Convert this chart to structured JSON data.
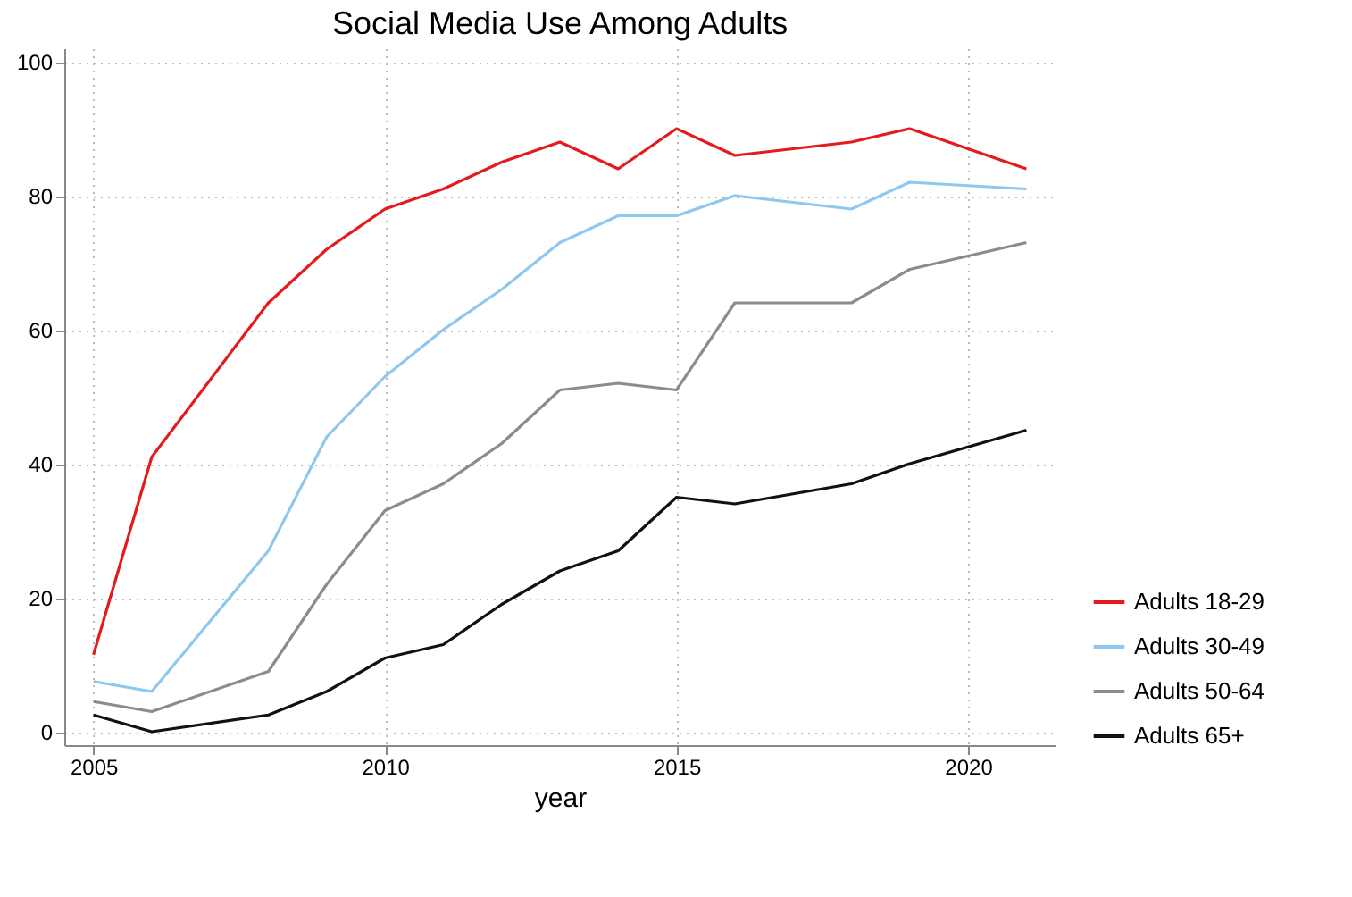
{
  "chart_data": {
    "type": "line",
    "title": "Social Media Use Among Adults",
    "xlabel": "year",
    "x": [
      2005,
      2006,
      2008,
      2009,
      2010,
      2011,
      2012,
      2013,
      2014,
      2015,
      2016,
      2018,
      2019,
      2021
    ],
    "series": [
      {
        "name": "Adults 18-29",
        "color": "#e41a1c",
        "values": [
          11.5,
          41,
          64,
          72,
          78,
          81,
          85,
          88,
          84,
          90,
          86,
          88,
          90,
          84
        ]
      },
      {
        "name": "Adults 30-49",
        "color": "#8ec8ee",
        "values": [
          7.5,
          6,
          27,
          44,
          53,
          60,
          66,
          73,
          77,
          77,
          80,
          78,
          82,
          81
        ]
      },
      {
        "name": "Adults 50-64",
        "color": "#8c8c8c",
        "values": [
          4.5,
          3,
          9,
          22,
          33,
          37,
          43,
          51,
          52,
          51,
          64,
          64,
          69,
          73
        ]
      },
      {
        "name": "Adults 65+",
        "color": "#111111",
        "values": [
          2.5,
          0,
          2.5,
          6,
          11,
          13,
          19,
          24,
          27,
          35,
          34,
          37,
          40,
          45
        ]
      }
    ],
    "xlim": [
      2004.5,
      2021.5
    ],
    "xticks": [
      2005,
      2010,
      2015,
      2020
    ],
    "ylim": [
      -2,
      102
    ],
    "yticks": [
      0,
      20,
      40,
      60,
      80,
      100
    ],
    "grid": true,
    "legend": "bottom right",
    "marker": "none",
    "line_style": "solid"
  }
}
